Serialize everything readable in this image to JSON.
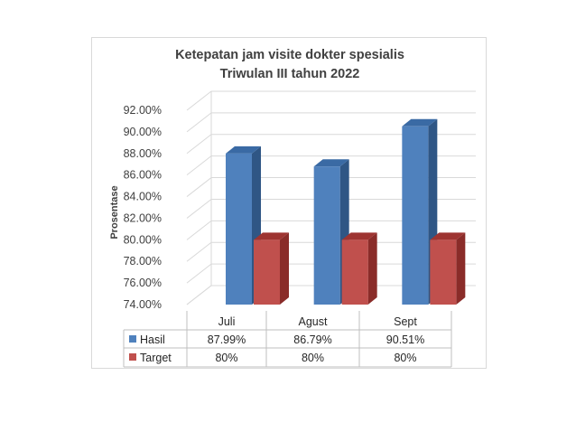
{
  "chart_data": {
    "type": "bar",
    "title_lines": [
      "Ketepatan jam visite dokter spesialis",
      "Triwulan III tahun 2022"
    ],
    "ylabel": "Prosentase",
    "xlabel": "",
    "categories": [
      "Juli",
      "Agust",
      "Sept"
    ],
    "series": [
      {
        "name": "Hasil",
        "values": [
          87.99,
          86.79,
          90.51
        ],
        "labels": [
          "87.99%",
          "86.79%",
          "90.51%"
        ],
        "color": "#4f81bd",
        "top_color": "#3a6aa4",
        "side_color": "#2f5685"
      },
      {
        "name": "Target",
        "values": [
          80,
          80,
          80
        ],
        "labels": [
          "80%",
          "80%",
          "80%"
        ],
        "color": "#c0504d",
        "top_color": "#9e3431",
        "side_color": "#8a2c29"
      }
    ],
    "ylim": [
      74,
      92
    ],
    "yticks": [
      74,
      76,
      78,
      80,
      82,
      84,
      86,
      88,
      90,
      92
    ],
    "ytick_labels": [
      "74.00%",
      "76.00%",
      "78.00%",
      "80.00%",
      "82.00%",
      "84.00%",
      "86.00%",
      "88.00%",
      "90.00%",
      "92.00%"
    ],
    "grid": true,
    "data_table": true,
    "style": "3d-clustered-column"
  }
}
